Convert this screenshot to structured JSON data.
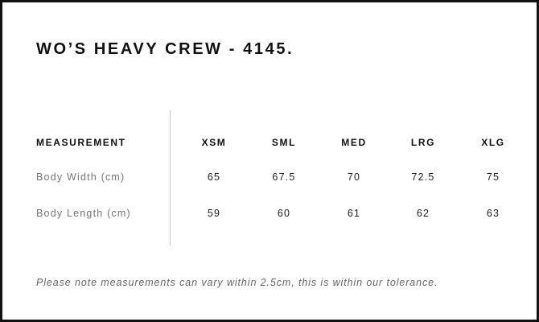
{
  "title": "WO’S HEAVY CREW - 4145.",
  "table": {
    "header_label": "MEASUREMENT",
    "sizes": [
      "XSM",
      "SML",
      "MED",
      "LRG",
      "XLG"
    ],
    "rows": [
      {
        "label": "Body Width (cm)",
        "values": [
          "65",
          "67.5",
          "70",
          "72.5",
          "75"
        ]
      },
      {
        "label": "Body Length (cm)",
        "values": [
          "59",
          "60",
          "61",
          "62",
          "63"
        ]
      }
    ]
  },
  "note": "Please note measurements can vary within 2.5cm, this is within our tolerance."
}
